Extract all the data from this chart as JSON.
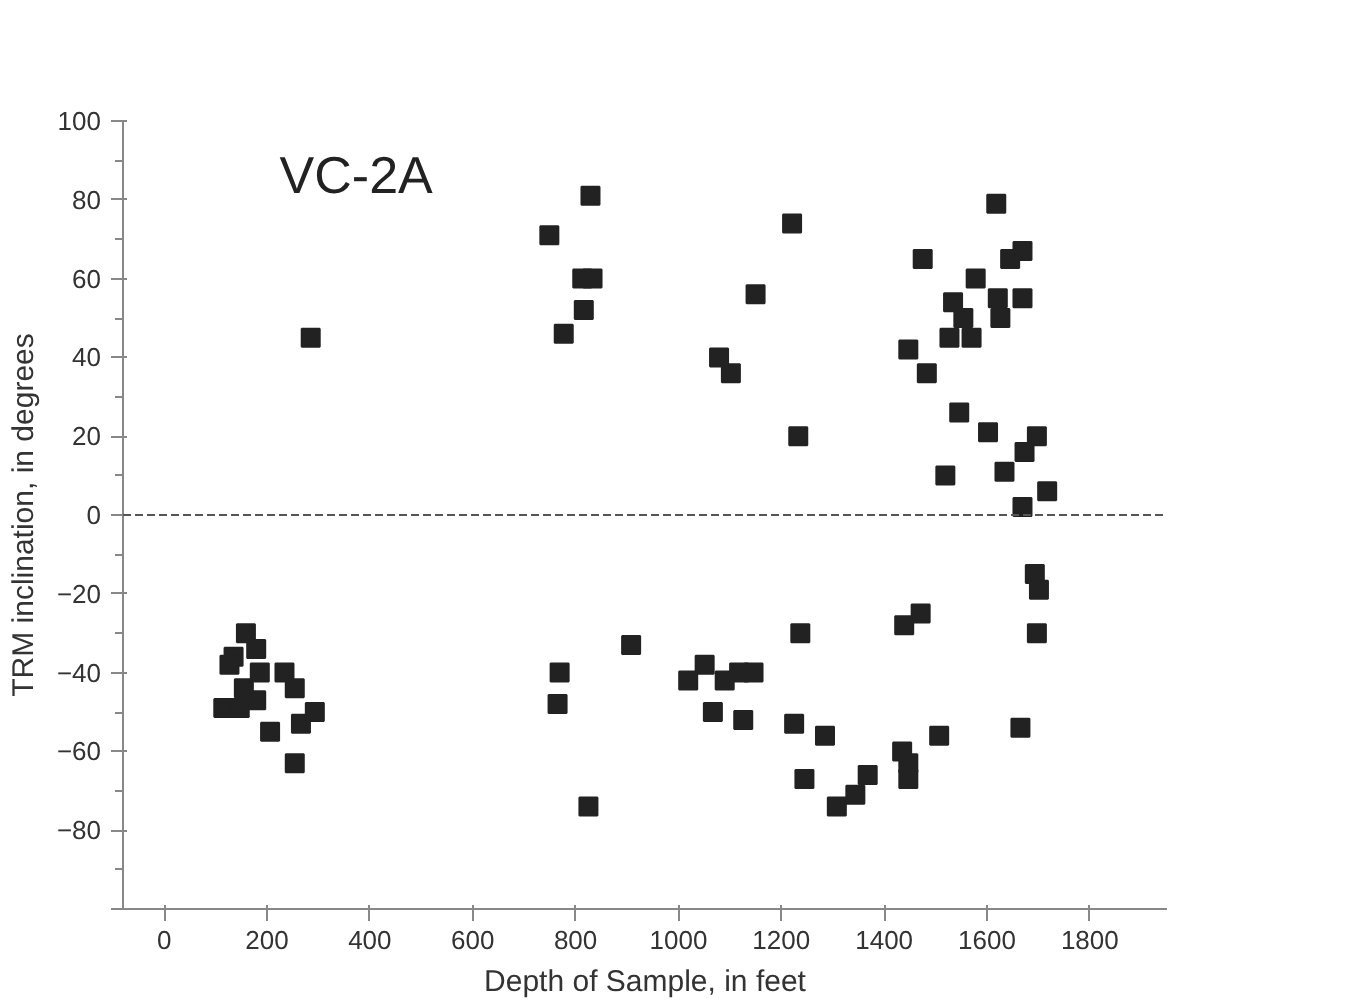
{
  "chart_data": {
    "type": "scatter",
    "title": "VC-2A",
    "xlabel": "Depth of Sample, in feet",
    "ylabel": "TRM inclination, in degrees",
    "x": [
      285,
      749,
      829,
      813,
      833,
      816,
      777,
      769,
      765,
      825,
      908,
      159,
      135,
      179,
      115,
      147,
      155,
      186,
      179,
      234,
      254,
      206,
      266,
      293,
      254,
      127,
      1221,
      1150,
      1079,
      1102,
      1233,
      1475,
      1578,
      1618,
      1645,
      1669,
      1534,
      1621,
      1669,
      1626,
      1554,
      1527,
      1570,
      1447,
      1483,
      1546,
      1602,
      1697,
      1673,
      1519,
      1634,
      1717,
      1669,
      1237,
      1439,
      1471,
      1697,
      1693,
      1701,
      1019,
      1051,
      1090,
      1118,
      1146,
      1067,
      1126,
      1225,
      1285,
      1507,
      1665,
      1245,
      1308,
      1344,
      1368,
      1435,
      1447,
      1447
    ],
    "values": [
      45,
      71,
      81,
      60,
      60,
      52,
      46,
      -40,
      -48,
      -74,
      -33,
      -30,
      -36,
      -34,
      -49,
      -49,
      -44,
      -40,
      -47,
      -40,
      -44,
      -55,
      -53,
      -50,
      -63,
      -38,
      74,
      56,
      40,
      36,
      20,
      65,
      60,
      79,
      65,
      67,
      54,
      55,
      55,
      50,
      50,
      45,
      45,
      42,
      36,
      26,
      21,
      20,
      16,
      10,
      11,
      6,
      2,
      -30,
      -28,
      -25,
      -30,
      -15,
      -19,
      -42,
      -38,
      -42,
      -40,
      -40,
      -50,
      -52,
      -53,
      -56,
      -56,
      -54,
      -67,
      -74,
      -71,
      -66,
      -60,
      -63,
      -67
    ],
    "color": "#222222",
    "marker": "square",
    "xlim": [
      -80,
      1950
    ],
    "ylim": [
      -100,
      100
    ],
    "xticks": [
      0,
      200,
      400,
      600,
      800,
      1000,
      1200,
      1400,
      1600,
      1800
    ],
    "yticks": [
      {
        "value": -100,
        "label": null
      },
      -80,
      -60,
      -40,
      -20,
      0,
      20,
      40,
      60,
      80,
      100
    ],
    "ref_lines": [
      {
        "axis": "y",
        "value": 0,
        "line_style": "dashed",
        "color": "#555555"
      }
    ],
    "grid": false
  }
}
